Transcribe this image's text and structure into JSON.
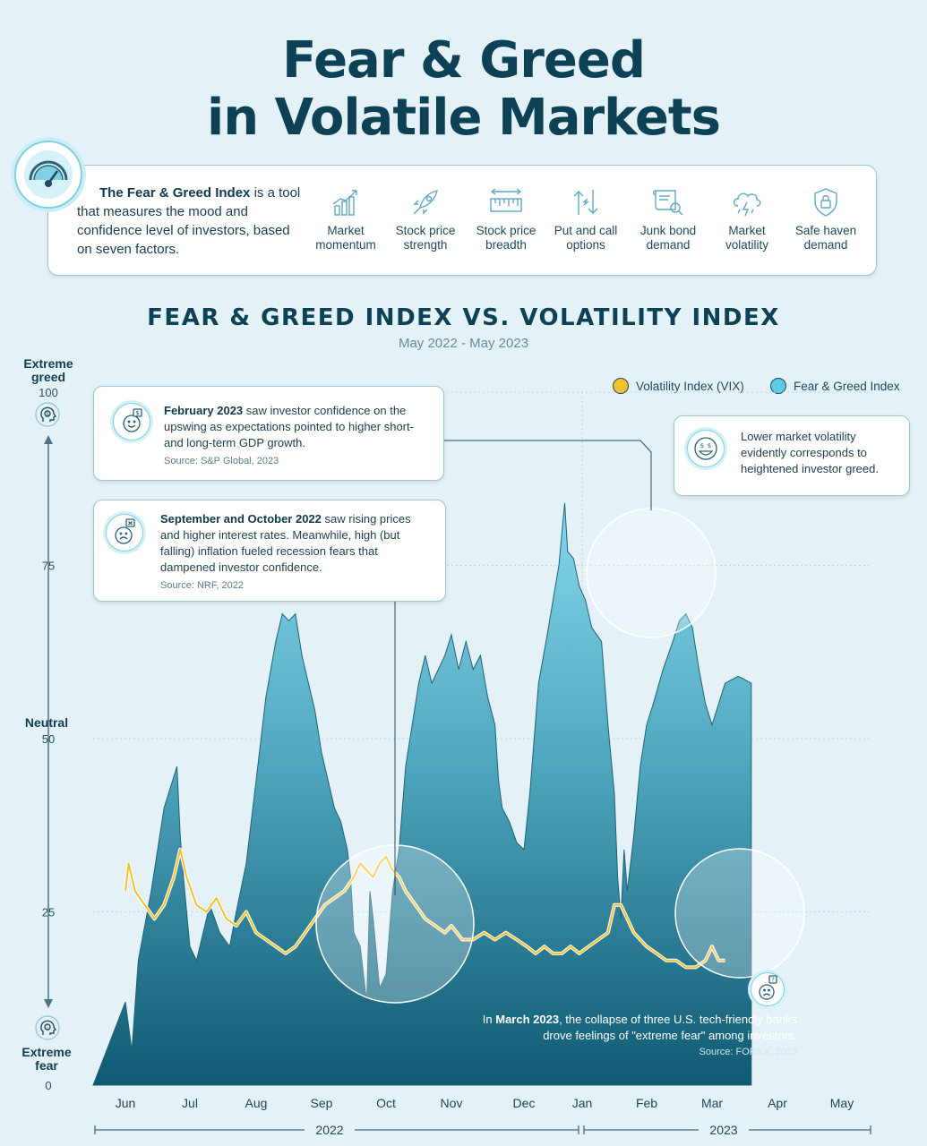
{
  "title_line1": "Fear & Greed",
  "title_line2": "in Volatile Markets",
  "intro": {
    "bold": "The Fear & Greed Index",
    "text": " is a tool that measures the mood and confidence level of investors, based on seven factors."
  },
  "factors": [
    {
      "label": "Market momentum",
      "icon": "chart-growth-icon"
    },
    {
      "label": "Stock price strength",
      "icon": "rocket-icon"
    },
    {
      "label": "Stock price breadth",
      "icon": "ruler-icon"
    },
    {
      "label": "Put and call options",
      "icon": "arrows-icon"
    },
    {
      "label": "Junk bond demand",
      "icon": "scroll-icon"
    },
    {
      "label": "Market volatility",
      "icon": "storm-cloud-icon"
    },
    {
      "label": "Safe haven demand",
      "icon": "shield-lock-icon"
    }
  ],
  "chart_title": "FEAR & GREED INDEX VS. VOLATILITY INDEX",
  "chart_subtitle": "May 2022 - May 2023",
  "y_labels": {
    "top": "Extreme greed",
    "middle": "Neutral",
    "bottom": "Extreme fear"
  },
  "legend": {
    "vix": "Volatility Index (VIX)",
    "fg": "Fear & Greed Index"
  },
  "callouts": {
    "feb": {
      "bold": "February 2023",
      "text": " saw investor confidence on the upswing as expectations pointed to higher short- and long-term GDP growth.",
      "source": "Source: S&P Global, 2023"
    },
    "sep": {
      "bold": "September and October 2022",
      "text": " saw rising prices and higher interest rates. Meanwhile, high (but falling) inflation fueled recession fears that dampened investor confidence.",
      "source": "Source: NRF, 2022"
    },
    "low_vol": {
      "text": "Lower market volatility evidently corresponds to heightened investor greed."
    },
    "march": {
      "prefix": "In ",
      "bold": "March 2023",
      "text": ", the collapse of three U.S. tech-friendly banks drove feelings of \"extreme fear\" among investors.",
      "source": "Source: FOREX, 2023"
    }
  },
  "colors": {
    "fg_top": "#86d8ea",
    "fg_bottom": "#0f5a72",
    "vix": "#f2c12e",
    "title": "#0d4156",
    "background": "#e4f2f8"
  },
  "chart_data": {
    "type": "area",
    "title": "FEAR & GREED INDEX VS. VOLATILITY INDEX",
    "subtitle": "May 2022 - May 2023",
    "ylim": [
      0,
      100
    ],
    "yticks": [
      0,
      25,
      50,
      75,
      100
    ],
    "x_months": [
      "Jun",
      "Jul",
      "Aug",
      "Sep",
      "Oct",
      "Nov",
      "Dec",
      "Jan",
      "Feb",
      "Mar",
      "Apr",
      "May"
    ],
    "x_years": [
      "2022",
      "2023"
    ],
    "grid": true,
    "legend_position": "top-right",
    "series": [
      {
        "name": "Fear & Greed Index",
        "type": "area",
        "points": [
          [
            0,
            12
          ],
          [
            0.1,
            5
          ],
          [
            0.2,
            18
          ],
          [
            0.4,
            28
          ],
          [
            0.6,
            40
          ],
          [
            0.8,
            46
          ],
          [
            0.85,
            36
          ],
          [
            0.9,
            30
          ],
          [
            1.0,
            20
          ],
          [
            1.1,
            18
          ],
          [
            1.2,
            22
          ],
          [
            1.3,
            26
          ],
          [
            1.45,
            22
          ],
          [
            1.6,
            20
          ],
          [
            1.7,
            25
          ],
          [
            1.85,
            32
          ],
          [
            2.0,
            44
          ],
          [
            2.15,
            56
          ],
          [
            2.3,
            64
          ],
          [
            2.4,
            68
          ],
          [
            2.5,
            67
          ],
          [
            2.6,
            68
          ],
          [
            2.7,
            62
          ],
          [
            2.8,
            58
          ],
          [
            2.9,
            54
          ],
          [
            3.0,
            48
          ],
          [
            3.1,
            44
          ],
          [
            3.2,
            40
          ],
          [
            3.3,
            38
          ],
          [
            3.4,
            34
          ],
          [
            3.45,
            30
          ],
          [
            3.5,
            22
          ],
          [
            3.6,
            20
          ],
          [
            3.7,
            12
          ],
          [
            3.75,
            28
          ],
          [
            3.8,
            24
          ],
          [
            3.9,
            14
          ],
          [
            4.0,
            16
          ],
          [
            4.1,
            28
          ],
          [
            4.2,
            34
          ],
          [
            4.3,
            46
          ],
          [
            4.5,
            58
          ],
          [
            4.6,
            62
          ],
          [
            4.7,
            58
          ],
          [
            4.8,
            60
          ],
          [
            4.9,
            62
          ],
          [
            5.0,
            65
          ],
          [
            5.1,
            60
          ],
          [
            5.2,
            64
          ],
          [
            5.3,
            60
          ],
          [
            5.4,
            62
          ],
          [
            5.5,
            56
          ],
          [
            5.6,
            52
          ],
          [
            5.65,
            44
          ],
          [
            5.7,
            40
          ],
          [
            5.8,
            38
          ],
          [
            5.9,
            35
          ],
          [
            6.0,
            34
          ],
          [
            6.1,
            42
          ],
          [
            6.25,
            58
          ],
          [
            6.4,
            65
          ],
          [
            6.5,
            70
          ],
          [
            6.6,
            75
          ],
          [
            6.7,
            84
          ],
          [
            6.75,
            77
          ],
          [
            6.85,
            76
          ],
          [
            6.95,
            72
          ],
          [
            7.05,
            70
          ],
          [
            7.15,
            66
          ],
          [
            7.3,
            64
          ],
          [
            7.4,
            52
          ],
          [
            7.5,
            42
          ],
          [
            7.55,
            30
          ],
          [
            7.6,
            24
          ],
          [
            7.65,
            34
          ],
          [
            7.7,
            28
          ],
          [
            7.8,
            36
          ],
          [
            7.9,
            46
          ],
          [
            8.0,
            52
          ],
          [
            8.1,
            55
          ],
          [
            8.25,
            60
          ],
          [
            8.4,
            64
          ],
          [
            8.5,
            67
          ],
          [
            8.6,
            68
          ],
          [
            8.7,
            66
          ],
          [
            8.8,
            60
          ],
          [
            8.9,
            55
          ],
          [
            9.0,
            52
          ],
          [
            9.2,
            58
          ],
          [
            9.4,
            59
          ],
          [
            9.6,
            58
          ]
        ]
      },
      {
        "name": "Volatility Index (VIX)",
        "type": "line",
        "points": [
          [
            0,
            28
          ],
          [
            0.05,
            32
          ],
          [
            0.15,
            28
          ],
          [
            0.3,
            26
          ],
          [
            0.45,
            24
          ],
          [
            0.6,
            26
          ],
          [
            0.75,
            30
          ],
          [
            0.85,
            34
          ],
          [
            0.95,
            30
          ],
          [
            1.1,
            26
          ],
          [
            1.25,
            25
          ],
          [
            1.4,
            27
          ],
          [
            1.55,
            24
          ],
          [
            1.7,
            23
          ],
          [
            1.85,
            25
          ],
          [
            2.0,
            22
          ],
          [
            2.15,
            21
          ],
          [
            2.3,
            20
          ],
          [
            2.45,
            19
          ],
          [
            2.6,
            20
          ],
          [
            2.75,
            22
          ],
          [
            2.9,
            24
          ],
          [
            3.05,
            26
          ],
          [
            3.2,
            27
          ],
          [
            3.35,
            28
          ],
          [
            3.5,
            30
          ],
          [
            3.6,
            32
          ],
          [
            3.7,
            31
          ],
          [
            3.8,
            30
          ],
          [
            3.9,
            32
          ],
          [
            4.0,
            33
          ],
          [
            4.1,
            31
          ],
          [
            4.2,
            30
          ],
          [
            4.3,
            28
          ],
          [
            4.45,
            26
          ],
          [
            4.6,
            24
          ],
          [
            4.75,
            23
          ],
          [
            4.9,
            22
          ],
          [
            5.0,
            23
          ],
          [
            5.15,
            21
          ],
          [
            5.3,
            21
          ],
          [
            5.45,
            22
          ],
          [
            5.6,
            21
          ],
          [
            5.75,
            22
          ],
          [
            5.9,
            21
          ],
          [
            6.05,
            20
          ],
          [
            6.2,
            19
          ],
          [
            6.35,
            20
          ],
          [
            6.5,
            19
          ],
          [
            6.65,
            19
          ],
          [
            6.8,
            20
          ],
          [
            6.95,
            19
          ],
          [
            7.1,
            20
          ],
          [
            7.25,
            21
          ],
          [
            7.4,
            22
          ],
          [
            7.5,
            26
          ],
          [
            7.6,
            26
          ],
          [
            7.7,
            24
          ],
          [
            7.8,
            22
          ],
          [
            7.9,
            21
          ],
          [
            8.0,
            20
          ],
          [
            8.15,
            19
          ],
          [
            8.3,
            18
          ],
          [
            8.45,
            18
          ],
          [
            8.6,
            17
          ],
          [
            8.75,
            17
          ],
          [
            8.9,
            18
          ],
          [
            9.0,
            20
          ],
          [
            9.1,
            18
          ],
          [
            9.2,
            18
          ]
        ]
      }
    ]
  }
}
